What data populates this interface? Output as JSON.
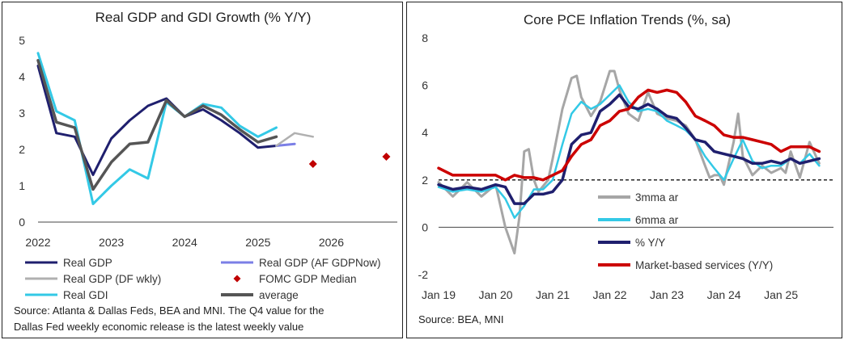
{
  "chart_data": [
    {
      "type": "line",
      "title": "Real GDP and GDI Growth (% Y/Y)",
      "ylim": [
        0,
        5
      ],
      "yticks": [
        "0",
        "1",
        "2",
        "3",
        "4",
        "5"
      ],
      "xlim": [
        2022.0,
        2026.9
      ],
      "xticks": [
        {
          "x": 2022.0,
          "label": "2022"
        },
        {
          "x": 2023.0,
          "label": "2023"
        },
        {
          "x": 2024.0,
          "label": "2024"
        },
        {
          "x": 2025.0,
          "label": "2025"
        },
        {
          "x": 2026.0,
          "label": "2026"
        }
      ],
      "series": [
        {
          "name": "Real GDP",
          "color": "#1f1f6e",
          "width": 3,
          "x": [
            2022.0,
            2022.25,
            2022.5,
            2022.75,
            2023.0,
            2023.25,
            2023.5,
            2023.75,
            2024.0,
            2024.25,
            2024.5,
            2024.75,
            2025.0,
            2025.25
          ],
          "y": [
            4.3,
            2.45,
            2.35,
            1.3,
            2.3,
            2.8,
            3.2,
            3.4,
            2.9,
            3.1,
            2.8,
            2.45,
            2.05,
            2.1
          ]
        },
        {
          "name": "Real GDP (AF GDPNow)",
          "color": "#7b7fe6",
          "width": 3,
          "x": [
            2025.25,
            2025.5
          ],
          "y": [
            2.1,
            2.15
          ]
        },
        {
          "name": "Real GDP (DF wkly)",
          "color": "#b0b0b0",
          "width": 2.5,
          "x": [
            2025.25,
            2025.5,
            2025.75
          ],
          "y": [
            2.1,
            2.45,
            2.35
          ]
        },
        {
          "name": "Real GDI",
          "color": "#33c9e6",
          "width": 3,
          "x": [
            2022.0,
            2022.25,
            2022.5,
            2022.75,
            2023.0,
            2023.25,
            2023.5,
            2023.75,
            2024.0,
            2024.25,
            2024.5,
            2024.75,
            2025.0,
            2025.25
          ],
          "y": [
            4.65,
            3.05,
            2.8,
            0.5,
            1.0,
            1.45,
            1.2,
            3.3,
            2.9,
            3.25,
            3.15,
            2.65,
            2.35,
            2.6
          ]
        },
        {
          "name": "average",
          "color": "#555555",
          "width": 3.5,
          "x": [
            2022.0,
            2022.25,
            2022.5,
            2022.75,
            2023.0,
            2023.25,
            2023.5,
            2023.75,
            2024.0,
            2024.25,
            2024.5,
            2024.75,
            2025.0,
            2025.25
          ],
          "y": [
            4.45,
            2.75,
            2.6,
            0.9,
            1.65,
            2.15,
            2.2,
            3.35,
            2.9,
            3.2,
            2.95,
            2.55,
            2.2,
            2.35
          ]
        }
      ],
      "markers": [
        {
          "name": "FOMC GDP Median",
          "color": "#c00000",
          "x": [
            2025.75,
            2026.75
          ],
          "y": [
            1.6,
            1.8
          ]
        }
      ],
      "legend": [
        {
          "label": "Real GDP",
          "color": "#1f1f6e",
          "kind": "line"
        },
        {
          "label": "Real GDP (AF GDPNow)",
          "color": "#7b7fe6",
          "kind": "line"
        },
        {
          "label": "Real GDP (DF wkly)",
          "color": "#b0b0b0",
          "kind": "line"
        },
        {
          "label": "FOMC GDP Median",
          "color": "#c00000",
          "kind": "diamond"
        },
        {
          "label": "Real GDI",
          "color": "#33c9e6",
          "kind": "line"
        },
        {
          "label": "average",
          "color": "#555555",
          "kind": "line"
        }
      ],
      "source_lines": [
        "Source: Atlanta & Dallas Feds, BEA and MNI. The Q4 value for the",
        "Dallas Fed weekly economic release is the latest weekly value"
      ]
    },
    {
      "type": "line",
      "title": "Core PCE Inflation Trends (%, sa)",
      "ylim": [
        -2,
        8
      ],
      "yticks": [
        "-2",
        "0",
        "2",
        "4",
        "6",
        "8"
      ],
      "xlim": [
        2019.0,
        2025.92
      ],
      "xticks": [
        {
          "x": 2019.0,
          "label": "Jan 19"
        },
        {
          "x": 2020.0,
          "label": "Jan 20"
        },
        {
          "x": 2021.0,
          "label": "Jan 21"
        },
        {
          "x": 2022.0,
          "label": "Jan 22"
        },
        {
          "x": 2023.0,
          "label": "Jan 23"
        },
        {
          "x": 2024.0,
          "label": "Jan 24"
        },
        {
          "x": 2025.0,
          "label": "Jan 25"
        }
      ],
      "reference_line": {
        "y": 2,
        "style": "dashed"
      },
      "series": [
        {
          "name": "3mma ar",
          "color": "#a6a6a6",
          "width": 3,
          "x": [
            2019.0,
            2019.25,
            2019.5,
            2019.75,
            2020.0,
            2020.17,
            2020.33,
            2020.42,
            2020.5,
            2020.58,
            2020.67,
            2020.75,
            2020.92,
            2021.0,
            2021.17,
            2021.33,
            2021.42,
            2021.5,
            2021.67,
            2021.83,
            2022.0,
            2022.08,
            2022.17,
            2022.33,
            2022.5,
            2022.67,
            2022.83,
            2023.0,
            2023.17,
            2023.33,
            2023.5,
            2023.67,
            2023.75,
            2023.83,
            2023.92,
            2024.0,
            2024.17,
            2024.25,
            2024.33,
            2024.5,
            2024.67,
            2024.83,
            2025.0,
            2025.08,
            2025.17,
            2025.33,
            2025.5,
            2025.67
          ],
          "y": [
            1.9,
            1.3,
            1.9,
            1.3,
            1.8,
            0.0,
            -1.1,
            0.5,
            3.2,
            3.3,
            2.0,
            1.5,
            2.0,
            2.9,
            5.0,
            6.3,
            6.4,
            5.5,
            4.7,
            5.3,
            6.6,
            6.6,
            5.8,
            4.8,
            4.5,
            5.7,
            4.8,
            4.6,
            4.5,
            4.3,
            3.7,
            2.6,
            2.1,
            2.2,
            2.2,
            1.8,
            3.6,
            4.8,
            3.0,
            2.2,
            2.6,
            2.3,
            2.5,
            2.3,
            3.2,
            2.1,
            3.6,
            2.7
          ]
        },
        {
          "name": "6mma ar",
          "color": "#33c9e6",
          "width": 2.5,
          "x": [
            2019.0,
            2019.25,
            2019.5,
            2019.75,
            2020.0,
            2020.17,
            2020.33,
            2020.5,
            2020.67,
            2020.83,
            2021.0,
            2021.17,
            2021.33,
            2021.5,
            2021.67,
            2021.83,
            2022.0,
            2022.17,
            2022.33,
            2022.5,
            2022.67,
            2022.83,
            2023.0,
            2023.17,
            2023.33,
            2023.5,
            2023.67,
            2023.83,
            2024.0,
            2024.17,
            2024.33,
            2024.5,
            2024.67,
            2024.83,
            2025.0,
            2025.17,
            2025.33,
            2025.5,
            2025.67
          ],
          "y": [
            1.7,
            1.5,
            1.6,
            1.5,
            1.7,
            1.2,
            0.4,
            0.9,
            1.6,
            1.6,
            2.0,
            3.5,
            4.8,
            5.3,
            5.0,
            5.2,
            5.6,
            6.0,
            5.3,
            4.9,
            5.0,
            4.9,
            4.5,
            4.3,
            4.1,
            3.7,
            3.0,
            2.5,
            2.0,
            2.9,
            3.7,
            2.8,
            2.5,
            2.6,
            2.6,
            2.9,
            2.7,
            3.1,
            2.6
          ]
        },
        {
          "name": "% Y/Y",
          "color": "#1f1f6e",
          "width": 3.5,
          "x": [
            2019.0,
            2019.25,
            2019.5,
            2019.75,
            2020.0,
            2020.17,
            2020.33,
            2020.5,
            2020.67,
            2020.83,
            2021.0,
            2021.17,
            2021.33,
            2021.5,
            2021.67,
            2021.83,
            2022.0,
            2022.17,
            2022.33,
            2022.5,
            2022.67,
            2022.83,
            2023.0,
            2023.17,
            2023.33,
            2023.5,
            2023.67,
            2023.83,
            2024.0,
            2024.17,
            2024.33,
            2024.5,
            2024.67,
            2024.83,
            2025.0,
            2025.17,
            2025.33,
            2025.5,
            2025.67
          ],
          "y": [
            1.8,
            1.6,
            1.7,
            1.6,
            1.8,
            1.7,
            1.0,
            1.0,
            1.4,
            1.4,
            1.5,
            2.0,
            3.5,
            3.9,
            4.0,
            4.9,
            5.2,
            5.6,
            5.1,
            5.0,
            5.2,
            5.0,
            4.7,
            4.6,
            4.2,
            3.7,
            3.6,
            3.2,
            3.1,
            3.0,
            2.9,
            2.7,
            2.7,
            2.8,
            2.7,
            2.9,
            2.7,
            2.8,
            2.9
          ]
        },
        {
          "name": "Market-based services (Y/Y)",
          "color": "#cc0000",
          "width": 3.5,
          "x": [
            2019.0,
            2019.25,
            2019.5,
            2019.75,
            2020.0,
            2020.17,
            2020.33,
            2020.5,
            2020.67,
            2020.83,
            2021.0,
            2021.17,
            2021.33,
            2021.5,
            2021.67,
            2021.83,
            2022.0,
            2022.17,
            2022.33,
            2022.5,
            2022.67,
            2022.83,
            2023.0,
            2023.17,
            2023.33,
            2023.5,
            2023.67,
            2023.83,
            2024.0,
            2024.17,
            2024.33,
            2024.5,
            2024.67,
            2024.83,
            2025.0,
            2025.17,
            2025.33,
            2025.5,
            2025.67
          ],
          "y": [
            2.5,
            2.2,
            2.2,
            2.2,
            2.2,
            2.0,
            2.2,
            2.1,
            2.1,
            2.0,
            2.2,
            2.4,
            3.0,
            3.5,
            3.7,
            4.3,
            4.5,
            4.9,
            5.0,
            5.5,
            5.8,
            5.7,
            5.8,
            5.7,
            5.3,
            4.7,
            4.5,
            4.3,
            3.9,
            3.8,
            3.8,
            3.7,
            3.6,
            3.5,
            3.2,
            3.4,
            3.4,
            3.4,
            3.2
          ]
        }
      ],
      "legend": [
        {
          "label": "3mma ar",
          "color": "#a6a6a6"
        },
        {
          "label": "6mma ar",
          "color": "#33c9e6"
        },
        {
          "label": "% Y/Y",
          "color": "#1f1f6e"
        },
        {
          "label": "Market-based services (Y/Y)",
          "color": "#cc0000"
        }
      ],
      "source_lines": [
        "Source: BEA, MNI"
      ]
    }
  ]
}
